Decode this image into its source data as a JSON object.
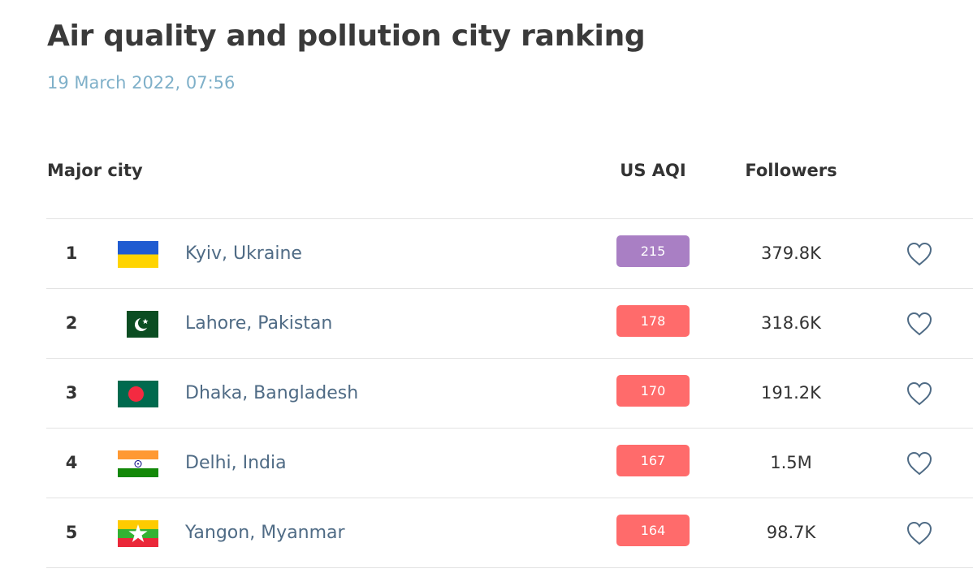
{
  "page": {
    "title": "Air quality and pollution city ranking",
    "date": "19 March 2022, 07:56"
  },
  "table": {
    "columns": {
      "city": "Major city",
      "aqi": "US AQI",
      "followers": "Followers"
    },
    "rows": [
      {
        "rank": "1",
        "city": "Kyiv, Ukraine",
        "aqi": "215",
        "aqi_color": "#a97fc4",
        "followers": "379.8K",
        "flag": "ukraine-flag-icon"
      },
      {
        "rank": "2",
        "city": "Lahore, Pakistan",
        "aqi": "178",
        "aqi_color": "#ff6b6b",
        "followers": "318.6K",
        "flag": "pakistan-flag-icon"
      },
      {
        "rank": "3",
        "city": "Dhaka, Bangladesh",
        "aqi": "170",
        "aqi_color": "#ff6b6b",
        "followers": "191.2K",
        "flag": "bangladesh-flag-icon"
      },
      {
        "rank": "4",
        "city": "Delhi, India",
        "aqi": "167",
        "aqi_color": "#ff6b6b",
        "followers": "1.5M",
        "flag": "india-flag-icon"
      },
      {
        "rank": "5",
        "city": "Yangon, Myanmar",
        "aqi": "164",
        "aqi_color": "#ff6b6b",
        "followers": "98.7K",
        "flag": "myanmar-flag-icon"
      }
    ]
  },
  "icons": {
    "follow": "heart-icon"
  },
  "colors": {
    "title": "#3a3a3a",
    "date": "#7fb0c9",
    "city_link": "#4f6b85",
    "heart": "#4f6b85"
  }
}
